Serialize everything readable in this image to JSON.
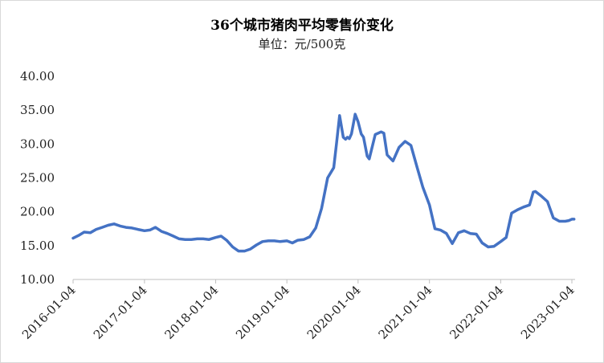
{
  "chart_data": {
    "type": "line",
    "title": "36个城市猪肉平均零售价变化",
    "subtitle": "单位：元/500克",
    "xlabel": "",
    "ylabel": "",
    "ylim": [
      10,
      40
    ],
    "yticks": [
      "10.00",
      "15.00",
      "20.00",
      "25.00",
      "30.00",
      "35.00",
      "40.00"
    ],
    "xticks": [
      "2016-01-04",
      "2017-01-04",
      "2018-01-04",
      "2019-01-04",
      "2020-01-04",
      "2021-01-04",
      "2022-01-04",
      "2023-01-04"
    ],
    "grid": false,
    "legend": "none",
    "series_color": "#4472C4",
    "series": [
      {
        "x": [
          "2016-01-04",
          "2016-02-01",
          "2016-03-01",
          "2016-04-01",
          "2016-05-01",
          "2016-06-01",
          "2016-07-01",
          "2016-08-01",
          "2016-09-01",
          "2016-10-01",
          "2016-11-01",
          "2016-12-01",
          "2017-01-04",
          "2017-02-01",
          "2017-03-01",
          "2017-04-01",
          "2017-05-01",
          "2017-06-01",
          "2017-07-01",
          "2017-08-01",
          "2017-09-01",
          "2017-10-01",
          "2017-11-01",
          "2017-12-01",
          "2018-01-04",
          "2018-02-01",
          "2018-03-01",
          "2018-04-01",
          "2018-05-01",
          "2018-06-01",
          "2018-07-01",
          "2018-08-01",
          "2018-09-01",
          "2018-10-01",
          "2018-11-01",
          "2018-12-01",
          "2019-01-04",
          "2019-02-01",
          "2019-03-01",
          "2019-04-01",
          "2019-05-01",
          "2019-06-01",
          "2019-07-01",
          "2019-08-01",
          "2019-09-01",
          "2019-09-15",
          "2019-10-01",
          "2019-10-20",
          "2019-11-01",
          "2019-11-10",
          "2019-11-20",
          "2019-12-01",
          "2019-12-20",
          "2020-01-04",
          "2020-01-20",
          "2020-02-01",
          "2020-02-20",
          "2020-03-01",
          "2020-04-01",
          "2020-05-01",
          "2020-05-15",
          "2020-06-01",
          "2020-07-01",
          "2020-08-01",
          "2020-09-01",
          "2020-10-01",
          "2020-11-01",
          "2020-12-01",
          "2021-01-04",
          "2021-02-01",
          "2021-03-01",
          "2021-04-01",
          "2021-05-01",
          "2021-06-01",
          "2021-07-01",
          "2021-08-01",
          "2021-09-01",
          "2021-10-01",
          "2021-11-01",
          "2021-12-01",
          "2022-01-04",
          "2022-02-01",
          "2022-03-01",
          "2022-04-01",
          "2022-05-01",
          "2022-06-01",
          "2022-06-20",
          "2022-07-01",
          "2022-08-01",
          "2022-09-01",
          "2022-10-01",
          "2022-11-01",
          "2022-12-01",
          "2022-12-20",
          "2023-01-04",
          "2023-01-15"
        ],
        "values": [
          16.1,
          16.5,
          17.0,
          16.9,
          17.4,
          17.7,
          18.0,
          18.2,
          17.9,
          17.7,
          17.6,
          17.4,
          17.2,
          17.3,
          17.7,
          17.1,
          16.8,
          16.4,
          16.0,
          15.9,
          15.9,
          16.0,
          16.0,
          15.9,
          16.2,
          16.4,
          15.8,
          14.8,
          14.2,
          14.2,
          14.5,
          15.1,
          15.6,
          15.7,
          15.7,
          15.6,
          15.7,
          15.4,
          15.8,
          15.9,
          16.3,
          17.6,
          20.5,
          25.0,
          26.5,
          30.0,
          34.2,
          31.0,
          30.7,
          31.0,
          30.8,
          31.5,
          34.4,
          33.3,
          31.5,
          31.0,
          28.2,
          27.8,
          31.4,
          31.8,
          31.6,
          28.4,
          27.5,
          29.5,
          30.4,
          29.8,
          26.6,
          23.6,
          21.0,
          17.5,
          17.3,
          16.8,
          15.3,
          16.9,
          17.2,
          16.8,
          16.7,
          15.4,
          14.8,
          14.9,
          15.6,
          16.2,
          19.8,
          20.3,
          20.7,
          21.0,
          22.9,
          23.0,
          22.3,
          21.5,
          19.1,
          18.6,
          18.6,
          18.7,
          18.9,
          18.9
        ]
      }
    ]
  }
}
